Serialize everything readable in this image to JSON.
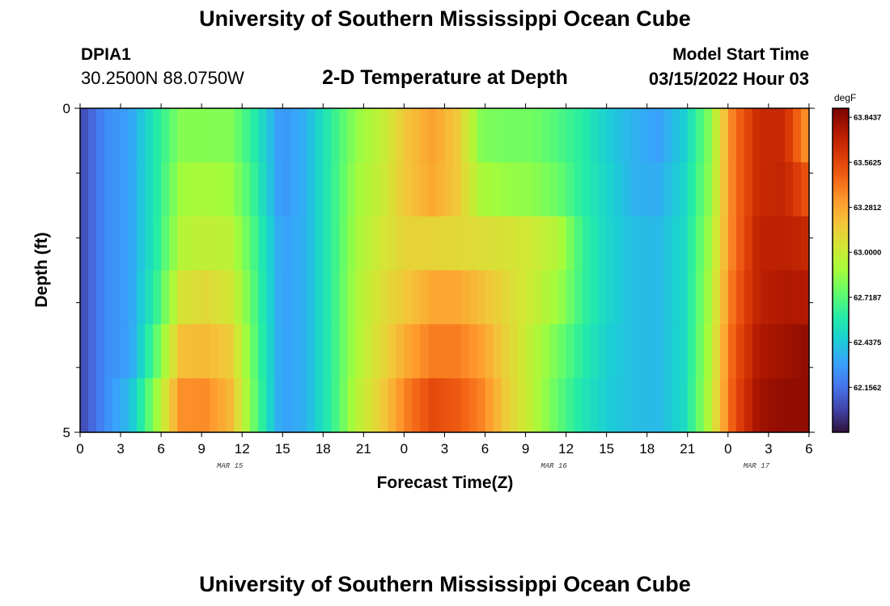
{
  "header": {
    "title": "University of Southern Mississippi Ocean Cube",
    "station_id": "DPIA1",
    "coordinates": "30.2500N  88.0750W",
    "plot_title": "2-D Temperature at Depth",
    "model_start_label": "Model Start Time",
    "model_start_value": "03/15/2022 Hour 03"
  },
  "footer": {
    "title": "University of Southern Mississippi Ocean Cube"
  },
  "chart_data": {
    "type": "heatmap",
    "xlabel": "Forecast Time(Z)",
    "ylabel": "Depth (ft)",
    "y_ticks": [
      "0",
      "5"
    ],
    "y_range": [
      0,
      5
    ],
    "x_tick_labels": [
      "0",
      "3",
      "6",
      "9",
      "12",
      "15",
      "18",
      "21",
      "0",
      "3",
      "6",
      "9",
      "12",
      "15",
      "18",
      "21",
      "0",
      "3",
      "6"
    ],
    "date_labels": [
      {
        "text": "MAR 15",
        "at_tick": 3.7
      },
      {
        "text": "MAR 16",
        "at_tick": 11.7
      },
      {
        "text": "MAR 17",
        "at_tick": 16.7
      }
    ],
    "colorbar": {
      "unit": "degF",
      "tick_labels": [
        "63.8437",
        "63.5625",
        "63.2812",
        "63.0000",
        "62.7187",
        "62.4375",
        "62.1562"
      ],
      "tick_values": [
        63.8437,
        63.5625,
        63.2812,
        63.0,
        62.7187,
        62.4375,
        62.1562
      ],
      "range": [
        61.875,
        63.9
      ],
      "colors": [
        "#30123b",
        "#4145ab",
        "#4675ed",
        "#39a2fc",
        "#1bcfd4",
        "#24eca6",
        "#61fc6c",
        "#a4fc3b",
        "#d1e834",
        "#f3c63a",
        "#fe9b2d",
        "#f36315",
        "#d93806",
        "#b11901",
        "#7a0402"
      ]
    },
    "x_hours": [
      0,
      3,
      6,
      9,
      12,
      15,
      18,
      21,
      24,
      27,
      30,
      33,
      36,
      39,
      42,
      45,
      48,
      51,
      54
    ],
    "depth_levels_ft": [
      0,
      1,
      2,
      3,
      4,
      5
    ],
    "temperature_rows_degF": [
      [
        62.02,
        62.24,
        62.31,
        62.58,
        62.82,
        62.82,
        62.81,
        62.58,
        62.26,
        62.36,
        62.62,
        62.85,
        62.98,
        63.18,
        63.3,
        63.17,
        62.8,
        62.78,
        62.78,
        62.7,
        62.6,
        62.45,
        62.36,
        62.3,
        62.45,
        62.8,
        63.42,
        63.68,
        63.68,
        63.3
      ],
      [
        62.02,
        62.24,
        62.31,
        62.58,
        62.88,
        62.9,
        62.88,
        62.62,
        62.26,
        62.36,
        62.62,
        62.88,
        63.0,
        63.18,
        63.28,
        63.17,
        62.9,
        62.86,
        62.84,
        62.76,
        62.6,
        62.48,
        62.36,
        62.34,
        62.48,
        62.82,
        63.42,
        63.68,
        63.7,
        63.5
      ],
      [
        62.02,
        62.24,
        62.31,
        62.58,
        62.94,
        62.98,
        62.96,
        62.66,
        62.3,
        62.36,
        62.62,
        62.9,
        63.04,
        63.12,
        63.12,
        63.1,
        63.08,
        63.06,
        63.02,
        62.94,
        62.64,
        62.48,
        62.4,
        62.38,
        62.5,
        62.86,
        63.42,
        63.72,
        63.72,
        63.68
      ],
      [
        62.02,
        62.24,
        62.31,
        62.62,
        63.05,
        63.1,
        63.04,
        62.68,
        62.3,
        62.36,
        62.62,
        62.92,
        63.08,
        63.18,
        63.28,
        63.28,
        63.2,
        63.1,
        63.0,
        62.88,
        62.64,
        62.48,
        62.4,
        62.38,
        62.5,
        62.88,
        63.46,
        63.72,
        63.76,
        63.75
      ],
      [
        62.02,
        62.24,
        62.31,
        62.72,
        63.2,
        63.22,
        63.15,
        62.7,
        62.3,
        62.36,
        62.62,
        62.92,
        63.1,
        63.28,
        63.4,
        63.4,
        63.3,
        63.12,
        62.96,
        62.78,
        62.6,
        62.46,
        62.4,
        62.38,
        62.5,
        62.9,
        63.5,
        63.76,
        63.8,
        63.84
      ],
      [
        62.02,
        62.24,
        62.4,
        62.85,
        63.35,
        63.36,
        63.22,
        62.72,
        62.3,
        62.36,
        62.62,
        62.95,
        63.15,
        63.4,
        63.55,
        63.5,
        63.38,
        63.14,
        62.96,
        62.74,
        62.56,
        62.45,
        62.4,
        62.38,
        62.5,
        62.92,
        63.52,
        63.8,
        63.84,
        63.84
      ]
    ]
  }
}
